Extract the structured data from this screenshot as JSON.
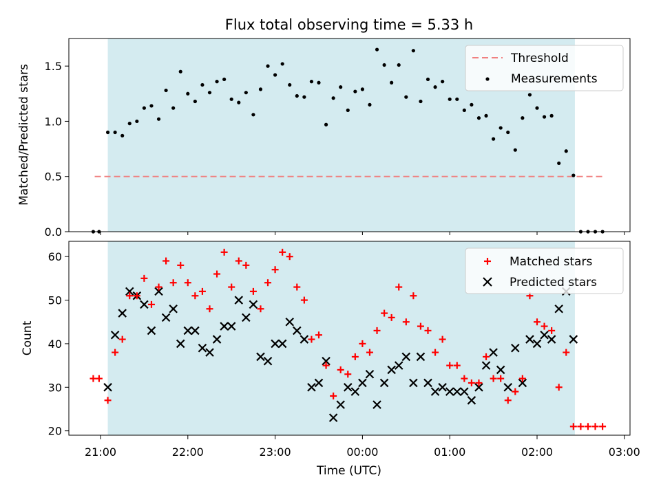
{
  "chart_data": [
    {
      "type": "scatter",
      "title": "Flux total observing time = 5.33 h",
      "xlabel": "",
      "ylabel": "Matched/Predicted stars",
      "ylim": [
        0,
        1.75
      ],
      "y_ticks": [
        "0.0",
        "0.5",
        "1.0",
        "1.5"
      ],
      "x_ticks_labels_shown": false,
      "shaded_interval": [
        "21:05",
        "02:26"
      ],
      "shade_color": "#d4ebf0",
      "threshold": {
        "name": "Threshold",
        "value": 0.5,
        "x_range": [
          "20:56",
          "02:47"
        ],
        "color": "#f08080",
        "style": "dashed"
      },
      "series": [
        {
          "name": "Measurements",
          "color": "#000000",
          "marker": "dot",
          "x": [
            "20:55",
            "20:59",
            "21:05",
            "21:10",
            "21:15",
            "21:20",
            "21:25",
            "21:30",
            "21:35",
            "21:40",
            "21:45",
            "21:50",
            "21:55",
            "22:00",
            "22:05",
            "22:10",
            "22:15",
            "22:20",
            "22:25",
            "22:30",
            "22:35",
            "22:40",
            "22:45",
            "22:50",
            "22:55",
            "23:00",
            "23:05",
            "23:10",
            "23:15",
            "23:20",
            "23:25",
            "23:30",
            "23:35",
            "23:40",
            "23:45",
            "23:50",
            "23:55",
            "00:00",
            "00:05",
            "00:10",
            "00:15",
            "00:20",
            "00:25",
            "00:30",
            "00:35",
            "00:40",
            "00:45",
            "00:50",
            "00:55",
            "01:00",
            "01:05",
            "01:10",
            "01:15",
            "01:20",
            "01:25",
            "01:30",
            "01:35",
            "01:40",
            "01:45",
            "01:50",
            "01:55",
            "02:00",
            "02:05",
            "02:10",
            "02:15",
            "02:20",
            "02:25",
            "02:30",
            "02:35",
            "02:40",
            "02:45"
          ],
          "values": [
            0.0,
            0.0,
            0.9,
            0.9,
            0.87,
            0.98,
            1.0,
            1.12,
            1.14,
            1.02,
            1.28,
            1.12,
            1.45,
            1.25,
            1.18,
            1.33,
            1.26,
            1.36,
            1.38,
            1.2,
            1.17,
            1.26,
            1.06,
            1.29,
            1.5,
            1.42,
            1.52,
            1.33,
            1.23,
            1.22,
            1.36,
            1.35,
            0.97,
            1.21,
            1.31,
            1.1,
            1.27,
            1.29,
            1.15,
            1.65,
            1.51,
            1.35,
            1.51,
            1.22,
            1.64,
            1.18,
            1.38,
            1.31,
            1.36,
            1.2,
            1.2,
            1.1,
            1.15,
            1.03,
            1.05,
            0.84,
            0.94,
            0.9,
            0.74,
            1.03,
            1.24,
            1.12,
            1.04,
            1.05,
            0.62,
            0.73,
            0.51,
            0.0,
            0.0,
            0.0,
            0.0
          ]
        }
      ],
      "legend": [
        "Threshold",
        "Measurements"
      ],
      "legend_position": "top-right",
      "grid": false
    },
    {
      "type": "scatter",
      "title": "",
      "xlabel": "Time (UTC)",
      "ylabel": "Count",
      "ylim": [
        19,
        63.5
      ],
      "y_ticks": [
        "20",
        "30",
        "40",
        "50",
        "60"
      ],
      "x_ticks": [
        "21:00",
        "22:00",
        "23:00",
        "00:00",
        "01:00",
        "02:00",
        "03:00"
      ],
      "shaded_interval": [
        "21:05",
        "02:26"
      ],
      "shade_color": "#d4ebf0",
      "series": [
        {
          "name": "Matched stars",
          "color": "#ff0000",
          "marker": "plus",
          "x": [
            "20:55",
            "20:59",
            "21:05",
            "21:10",
            "21:15",
            "21:20",
            "21:25",
            "21:30",
            "21:35",
            "21:40",
            "21:45",
            "21:50",
            "21:55",
            "22:00",
            "22:05",
            "22:10",
            "22:15",
            "22:20",
            "22:25",
            "22:30",
            "22:35",
            "22:40",
            "22:45",
            "22:50",
            "22:55",
            "23:00",
            "23:05",
            "23:10",
            "23:15",
            "23:20",
            "23:25",
            "23:30",
            "23:35",
            "23:40",
            "23:45",
            "23:50",
            "23:55",
            "00:00",
            "00:05",
            "00:10",
            "00:15",
            "00:20",
            "00:25",
            "00:30",
            "00:35",
            "00:40",
            "00:45",
            "00:50",
            "00:55",
            "01:00",
            "01:05",
            "01:10",
            "01:15",
            "01:20",
            "01:25",
            "01:30",
            "01:35",
            "01:40",
            "01:45",
            "01:50",
            "01:55",
            "02:00",
            "02:05",
            "02:10",
            "02:15",
            "02:20",
            "02:25",
            "02:30",
            "02:35",
            "02:40",
            "02:45"
          ],
          "values": [
            32,
            32,
            27,
            38,
            41,
            51,
            51,
            55,
            49,
            53,
            59,
            54,
            58,
            54,
            51,
            52,
            48,
            56,
            61,
            53,
            59,
            58,
            52,
            48,
            54,
            57,
            61,
            60,
            53,
            50,
            41,
            42,
            35,
            28,
            34,
            33,
            37,
            40,
            38,
            43,
            47,
            46,
            53,
            45,
            51,
            44,
            43,
            38,
            41,
            35,
            35,
            32,
            31,
            31,
            37,
            32,
            32,
            27,
            29,
            32,
            51,
            45,
            44,
            43,
            30,
            38,
            21,
            21,
            21,
            21,
            21
          ]
        },
        {
          "name": "Predicted stars",
          "color": "#000000",
          "marker": "x",
          "x": [
            "21:05",
            "21:10",
            "21:15",
            "21:20",
            "21:25",
            "21:30",
            "21:35",
            "21:40",
            "21:45",
            "21:50",
            "21:55",
            "22:00",
            "22:05",
            "22:10",
            "22:15",
            "22:20",
            "22:25",
            "22:30",
            "22:35",
            "22:40",
            "22:45",
            "22:50",
            "22:55",
            "23:00",
            "23:05",
            "23:10",
            "23:15",
            "23:20",
            "23:25",
            "23:30",
            "23:35",
            "23:40",
            "23:45",
            "23:50",
            "23:55",
            "00:00",
            "00:05",
            "00:10",
            "00:15",
            "00:20",
            "00:25",
            "00:30",
            "00:35",
            "00:40",
            "00:45",
            "00:50",
            "00:55",
            "01:00",
            "01:05",
            "01:10",
            "01:15",
            "01:20",
            "01:25",
            "01:30",
            "01:35",
            "01:40",
            "01:45",
            "01:50",
            "01:55",
            "02:00",
            "02:05",
            "02:10",
            "02:15",
            "02:20",
            "02:25"
          ],
          "values": [
            30,
            42,
            47,
            52,
            51,
            49,
            43,
            52,
            46,
            48,
            40,
            43,
            43,
            39,
            38,
            41,
            44,
            44,
            50,
            46,
            49,
            37,
            36,
            40,
            40,
            45,
            43,
            41,
            30,
            31,
            36,
            23,
            26,
            30,
            29,
            31,
            33,
            26,
            31,
            34,
            35,
            37,
            31,
            37,
            31,
            29,
            30,
            29,
            29,
            29,
            27,
            30,
            35,
            38,
            34,
            30,
            39,
            31,
            41,
            40,
            42,
            41,
            48,
            52,
            41
          ]
        }
      ],
      "legend": [
        "Matched stars",
        "Predicted stars"
      ],
      "legend_position": "top-right",
      "grid": false
    }
  ]
}
